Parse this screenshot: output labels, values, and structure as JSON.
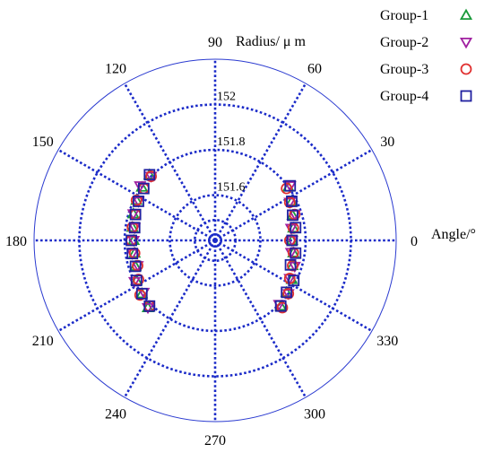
{
  "chart_data": {
    "type": "scatter",
    "subtype": "polar",
    "radial_axis_title": "Radius/ μ m",
    "angular_axis_title": "Angle/°",
    "angle_ticks": [
      "0",
      "30",
      "60",
      "90",
      "120",
      "150",
      "180",
      "210",
      "240",
      "270",
      "300",
      "330"
    ],
    "radial_ticks": [
      {
        "value": 151.6,
        "label": "151.6"
      },
      {
        "value": 151.8,
        "label": "151.8"
      },
      {
        "value": 152,
        "label": "152"
      }
    ],
    "rlim": [
      151.4,
      152.2
    ],
    "grid": true,
    "legend_position": "top-right",
    "series": [
      {
        "name": "Group-1",
        "marker": "triangle-up",
        "color": "#1a9a3a",
        "points": [
          [
            -45,
            151.81
          ],
          [
            -36,
            151.79
          ],
          [
            -27,
            151.78
          ],
          [
            -18,
            151.76
          ],
          [
            -9,
            151.75
          ],
          [
            0,
            151.74
          ],
          [
            9,
            151.75
          ],
          [
            18,
            151.76
          ],
          [
            27,
            151.78
          ],
          [
            36,
            151.8
          ],
          [
            135,
            151.81
          ],
          [
            144,
            151.8
          ],
          [
            153,
            151.79
          ],
          [
            162,
            151.78
          ],
          [
            171,
            151.77
          ],
          [
            180,
            151.76
          ],
          [
            189,
            151.76
          ],
          [
            198,
            151.77
          ],
          [
            207,
            151.79
          ],
          [
            216,
            151.8
          ],
          [
            225,
            151.82
          ]
        ]
      },
      {
        "name": "Group-2",
        "marker": "triangle-down",
        "color": "#a020a0",
        "points": [
          [
            -45,
            151.8
          ],
          [
            -36,
            151.8
          ],
          [
            -27,
            151.77
          ],
          [
            -18,
            151.77
          ],
          [
            -9,
            151.74
          ],
          [
            0,
            151.74
          ],
          [
            9,
            151.74
          ],
          [
            18,
            151.77
          ],
          [
            27,
            151.77
          ],
          [
            36,
            151.81
          ],
          [
            135,
            151.8
          ],
          [
            144,
            151.81
          ],
          [
            153,
            151.78
          ],
          [
            162,
            151.78
          ],
          [
            171,
            151.76
          ],
          [
            180,
            151.76
          ],
          [
            189,
            151.77
          ],
          [
            198,
            151.76
          ],
          [
            207,
            151.8
          ],
          [
            216,
            151.79
          ],
          [
            225,
            151.82
          ]
        ]
      },
      {
        "name": "Group-3",
        "marker": "circle",
        "color": "#e03030",
        "points": [
          [
            -45,
            151.82
          ],
          [
            -36,
            151.8
          ],
          [
            -27,
            151.77
          ],
          [
            -18,
            151.76
          ],
          [
            -9,
            151.75
          ],
          [
            0,
            151.73
          ],
          [
            9,
            151.75
          ],
          [
            18,
            151.77
          ],
          [
            27,
            151.77
          ],
          [
            36,
            151.79
          ],
          [
            135,
            151.8
          ],
          [
            144,
            151.79
          ],
          [
            153,
            151.79
          ],
          [
            162,
            151.77
          ],
          [
            171,
            151.77
          ],
          [
            180,
            151.77
          ],
          [
            189,
            151.76
          ],
          [
            198,
            151.76
          ],
          [
            207,
            151.78
          ],
          [
            216,
            151.81
          ],
          [
            225,
            151.81
          ]
        ]
      },
      {
        "name": "Group-4",
        "marker": "square",
        "color": "#2020a0",
        "points": [
          [
            -45,
            151.81
          ],
          [
            -36,
            151.79
          ],
          [
            -27,
            151.79
          ],
          [
            -18,
            151.75
          ],
          [
            -9,
            151.76
          ],
          [
            0,
            151.74
          ],
          [
            9,
            151.76
          ],
          [
            18,
            151.76
          ],
          [
            27,
            151.78
          ],
          [
            36,
            151.81
          ],
          [
            135,
            151.81
          ],
          [
            144,
            151.79
          ],
          [
            153,
            151.78
          ],
          [
            162,
            151.77
          ],
          [
            171,
            151.76
          ],
          [
            180,
            151.77
          ],
          [
            189,
            151.77
          ],
          [
            198,
            151.77
          ],
          [
            207,
            151.79
          ],
          [
            216,
            151.8
          ],
          [
            225,
            151.81
          ]
        ]
      }
    ],
    "colors": {
      "frame": "#2a3ad0",
      "grid": "#1a2ac8"
    }
  }
}
